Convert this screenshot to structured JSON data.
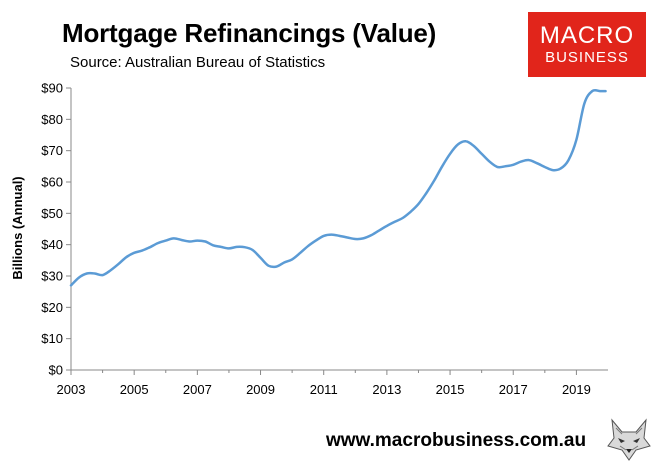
{
  "header": {
    "title": "Mortgage Refinancings (Value)",
    "subtitle": "Source: Australian Bureau of Statistics"
  },
  "logo": {
    "line1": "MACRO",
    "line2": "BUSINESS",
    "color": "#e1251b"
  },
  "footer": {
    "website": "www.macrobusiness.com.au",
    "icon": "fox-icon"
  },
  "chart_data": {
    "type": "line",
    "title": "Mortgage Refinancings (Value)",
    "ylabel": "Billions (Annual)",
    "xlabel": "",
    "xlim": [
      2003,
      2020
    ],
    "ylim": [
      0,
      90
    ],
    "x_ticks": [
      2003,
      2005,
      2007,
      2009,
      2011,
      2013,
      2015,
      2017,
      2019
    ],
    "x_tick_labels": [
      "2003",
      "2005",
      "2007",
      "2009",
      "2011",
      "2013",
      "2015",
      "2017",
      "2019"
    ],
    "y_ticks": [
      0,
      10,
      20,
      30,
      40,
      50,
      60,
      70,
      80,
      90
    ],
    "y_tick_labels": [
      "$0",
      "$10",
      "$20",
      "$30",
      "$40",
      "$50",
      "$60",
      "$70",
      "$80",
      "$90"
    ],
    "grid": false,
    "series_color": "#5b9bd5",
    "series": [
      {
        "x": [
          2003.0,
          2003.25,
          2003.5,
          2003.75,
          2004.0,
          2004.25,
          2004.5,
          2004.75,
          2005.0,
          2005.25,
          2005.5,
          2005.75,
          2006.0,
          2006.25,
          2006.5,
          2006.75,
          2007.0,
          2007.25,
          2007.5,
          2007.75,
          2008.0,
          2008.25,
          2008.5,
          2008.75,
          2009.0,
          2009.25,
          2009.5,
          2009.75,
          2010.0,
          2010.25,
          2010.5,
          2010.75,
          2011.0,
          2011.25,
          2011.5,
          2011.75,
          2012.0,
          2012.25,
          2012.5,
          2012.75,
          2013.0,
          2013.25,
          2013.5,
          2013.75,
          2014.0,
          2014.25,
          2014.5,
          2014.75,
          2015.0,
          2015.25,
          2015.5,
          2015.75,
          2016.0,
          2016.25,
          2016.5,
          2016.75,
          2017.0,
          2017.25,
          2017.5,
          2017.75,
          2018.0,
          2018.25,
          2018.5,
          2018.75,
          2019.0,
          2019.25,
          2019.5,
          2019.75,
          2019.9,
          2020.0,
          2020.1
        ],
        "values": [
          27.0,
          29.5,
          30.8,
          30.8,
          30.3,
          31.8,
          33.8,
          36.0,
          37.4,
          38.1,
          39.2,
          40.5,
          41.3,
          42.0,
          41.5,
          41.0,
          41.3,
          41.0,
          39.8,
          39.3,
          38.8,
          39.3,
          39.2,
          38.3,
          35.8,
          33.3,
          33.0,
          34.3,
          35.3,
          37.3,
          39.5,
          41.3,
          42.8,
          43.2,
          42.8,
          42.3,
          41.8,
          42.0,
          43.0,
          44.5,
          46.0,
          47.3,
          48.5,
          50.5,
          53.0,
          56.5,
          60.5,
          65.0,
          69.0,
          72.0,
          73.0,
          71.5,
          69.0,
          66.5,
          64.8,
          65.0,
          65.5,
          66.5,
          67.0,
          66.0,
          64.8,
          63.8,
          64.3,
          67.0,
          73.5,
          85.0,
          89.0,
          89.0,
          89.0,
          89.0,
          89.0
        ]
      }
    ]
  }
}
